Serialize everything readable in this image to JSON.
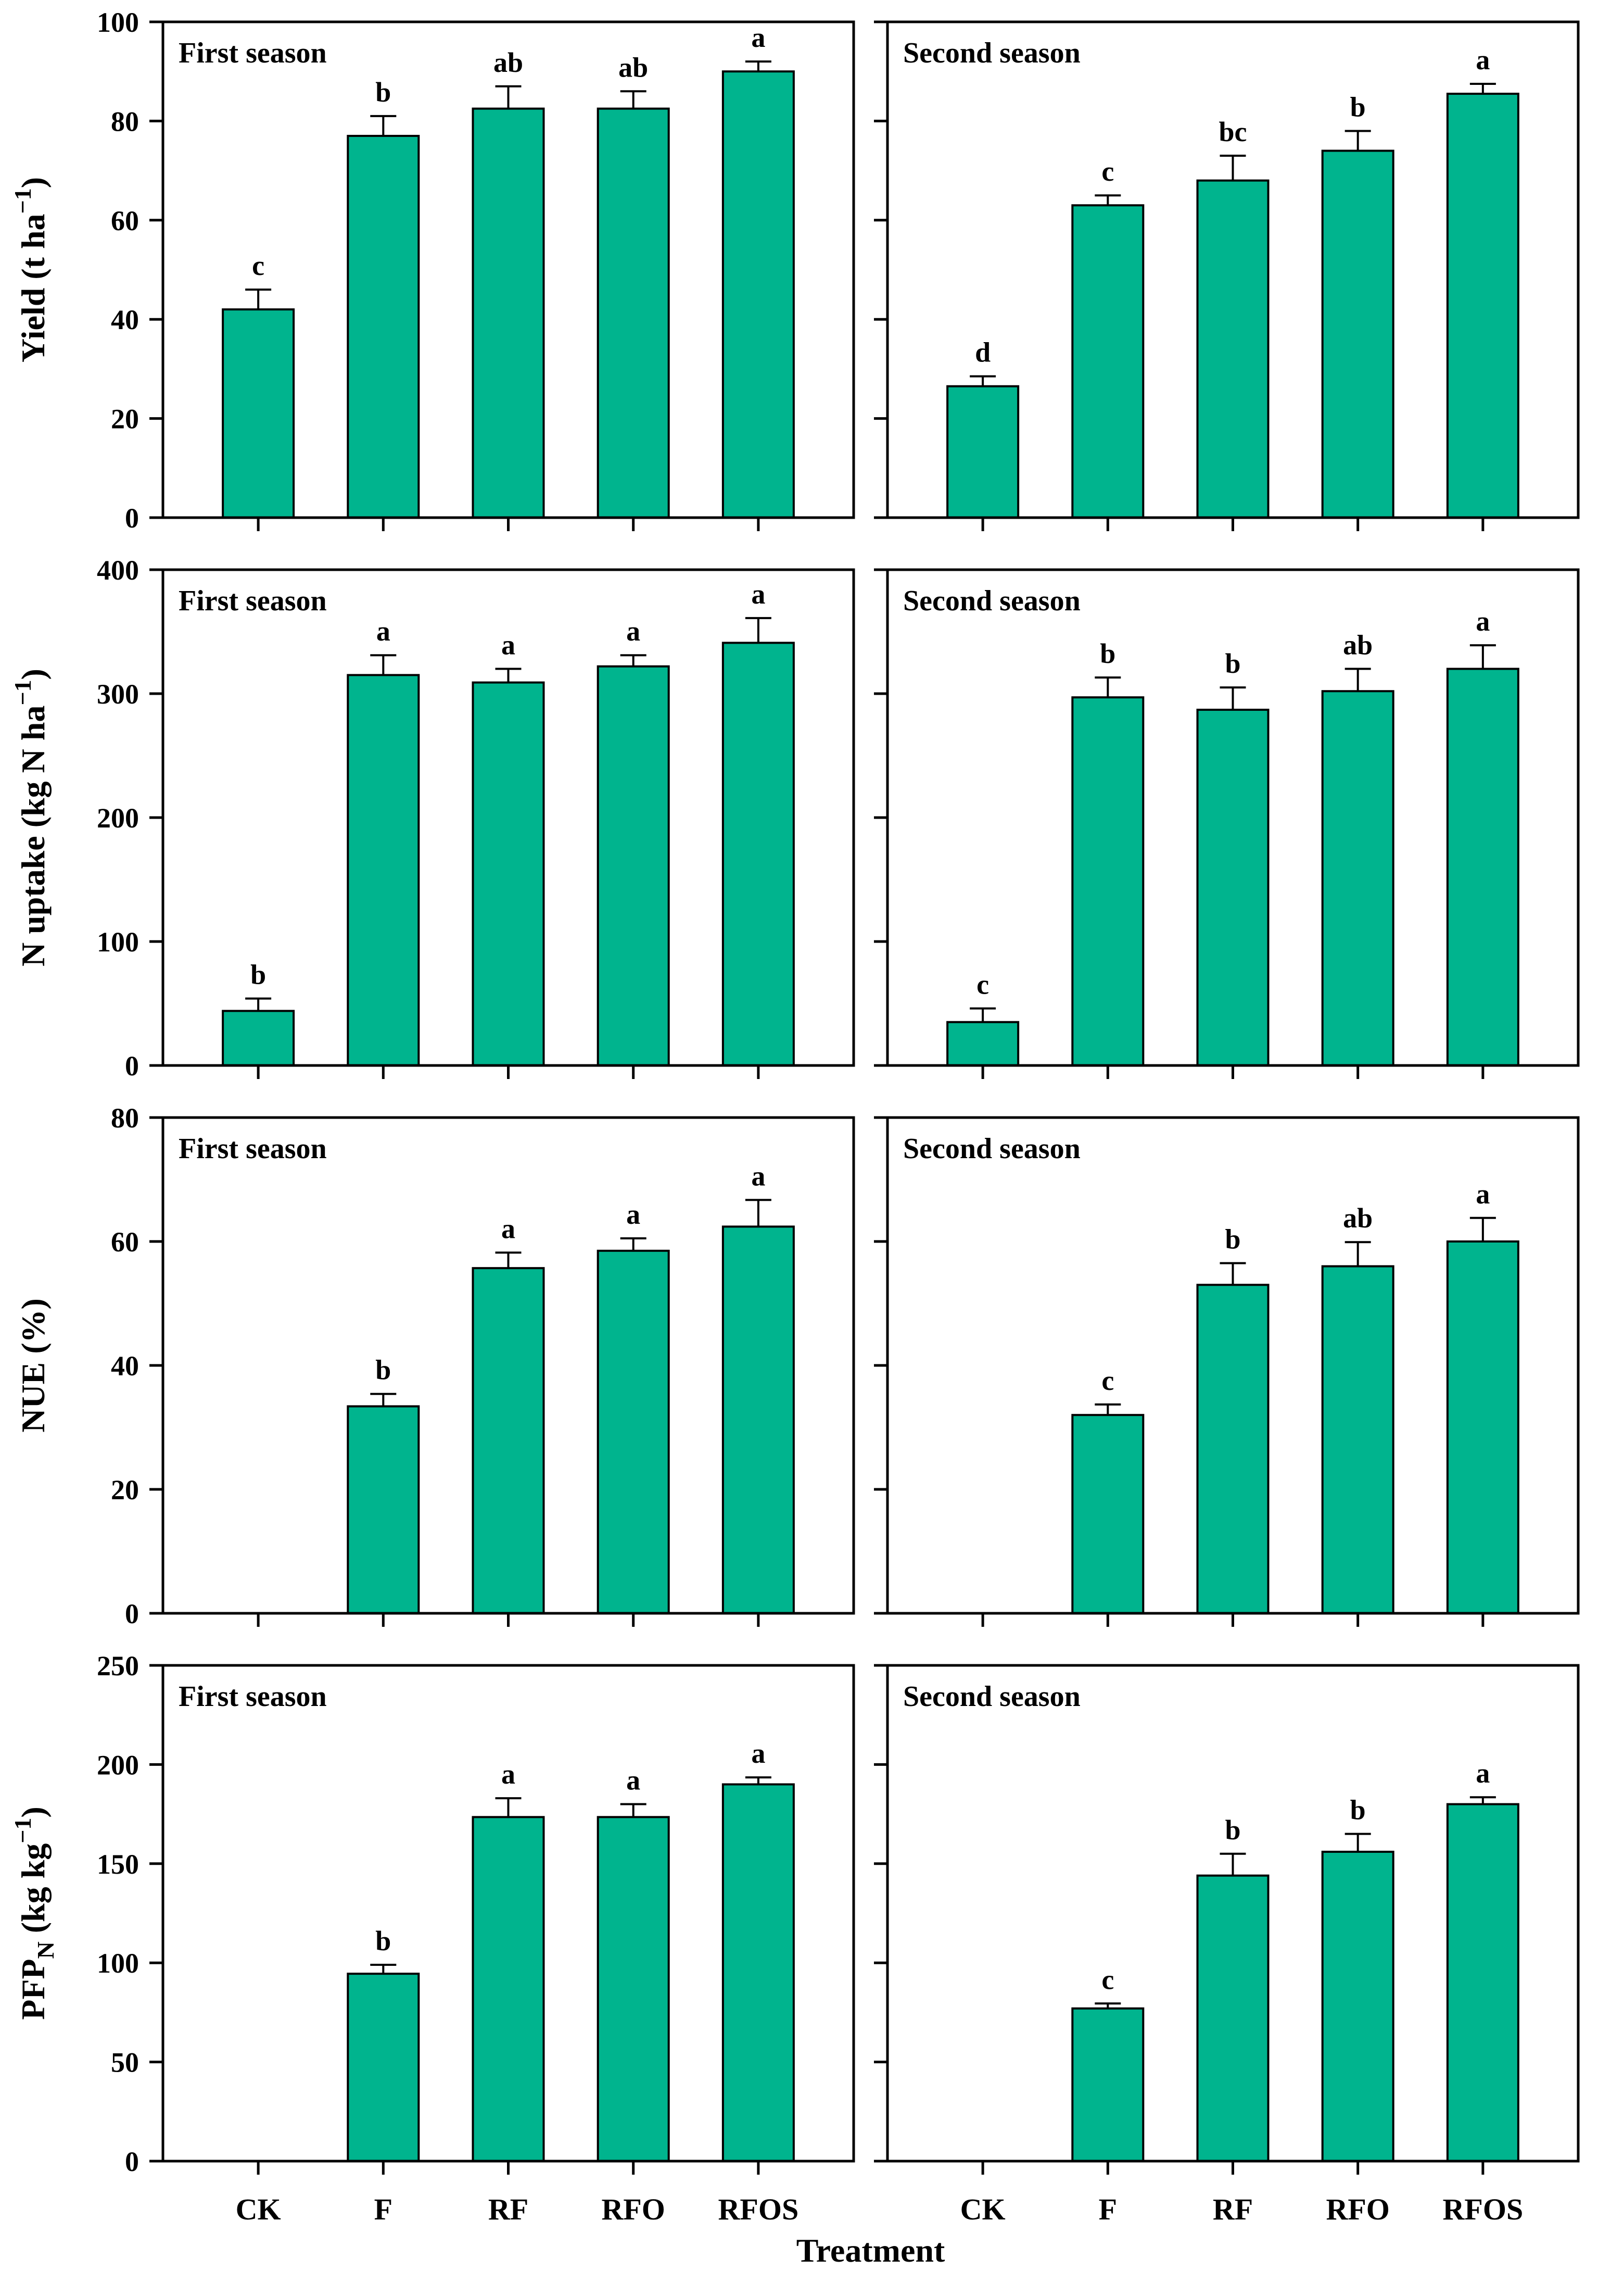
{
  "figure": {
    "background": "#ffffff",
    "bar_color": "#00b48e",
    "bar_border_color": "#000000",
    "axis_color": "#000000",
    "text_color": "#000000",
    "xlabel": "Treatment",
    "categories": [
      "CK",
      "F",
      "RF",
      "RFO",
      "RFOS"
    ],
    "season_labels": [
      "First season",
      "Second season"
    ],
    "legend": "none",
    "grid": "off"
  },
  "chart_data": [
    {
      "type": "bar",
      "id": "yield-first",
      "panel_label": "First season",
      "ylabel": "Yield (t ha−1)",
      "ylabel_segments": [
        {
          "t": "Yield (t ha"
        },
        {
          "t": "−1",
          "s": "sup"
        },
        {
          "t": ")"
        }
      ],
      "ylim": [
        0,
        100
      ],
      "ytick_step": 20,
      "categories": [
        "CK",
        "F",
        "RF",
        "RFO",
        "RFOS"
      ],
      "values": [
        42,
        77,
        82.5,
        82.5,
        90
      ],
      "errors": [
        4,
        4,
        4.5,
        3.5,
        2
      ],
      "letters": [
        "c",
        "b",
        "ab",
        "ab",
        "a"
      ],
      "show_ytick_labels": true,
      "show_xtick_labels": false,
      "show_ylabel": true
    },
    {
      "type": "bar",
      "id": "yield-second",
      "panel_label": "Second season",
      "ylabel": "Yield (t ha−1)",
      "ylabel_segments": [],
      "ylim": [
        0,
        100
      ],
      "ytick_step": 20,
      "categories": [
        "CK",
        "F",
        "RF",
        "RFO",
        "RFOS"
      ],
      "values": [
        26.5,
        63,
        68,
        74,
        85.5
      ],
      "errors": [
        2,
        2,
        5,
        4,
        2
      ],
      "letters": [
        "d",
        "c",
        "bc",
        "b",
        "a"
      ],
      "show_ytick_labels": false,
      "show_xtick_labels": false,
      "show_ylabel": false
    },
    {
      "type": "bar",
      "id": "nuptake-first",
      "panel_label": "First season",
      "ylabel": "N uptake (kg N ha−1)",
      "ylabel_segments": [
        {
          "t": "N uptake (kg N ha"
        },
        {
          "t": "−1",
          "s": "sup"
        },
        {
          "t": ")"
        }
      ],
      "ylim": [
        0,
        400
      ],
      "ytick_step": 100,
      "categories": [
        "CK",
        "F",
        "RF",
        "RFO",
        "RFOS"
      ],
      "values": [
        44,
        315,
        309,
        322,
        341
      ],
      "errors": [
        10,
        16,
        11,
        9,
        20
      ],
      "letters": [
        "b",
        "a",
        "a",
        "a",
        "a"
      ],
      "show_ytick_labels": true,
      "show_xtick_labels": false,
      "show_ylabel": true
    },
    {
      "type": "bar",
      "id": "nuptake-second",
      "panel_label": "Second season",
      "ylabel": "N uptake (kg N ha−1)",
      "ylabel_segments": [],
      "ylim": [
        0,
        400
      ],
      "ytick_step": 100,
      "categories": [
        "CK",
        "F",
        "RF",
        "RFO",
        "RFOS"
      ],
      "values": [
        35,
        297,
        287,
        302,
        320
      ],
      "errors": [
        11,
        16,
        18,
        18,
        19
      ],
      "letters": [
        "c",
        "b",
        "b",
        "ab",
        "a"
      ],
      "show_ytick_labels": false,
      "show_xtick_labels": false,
      "show_ylabel": false
    },
    {
      "type": "bar",
      "id": "nue-first",
      "panel_label": "First season",
      "ylabel": "NUE (%)",
      "ylabel_segments": [
        {
          "t": "NUE (%)"
        }
      ],
      "ylim": [
        0,
        80
      ],
      "ytick_step": 20,
      "categories": [
        "CK",
        "F",
        "RF",
        "RFO",
        "RFOS"
      ],
      "values": [
        0,
        33.4,
        55.7,
        58.5,
        62.4
      ],
      "errors": [
        0,
        2,
        2.5,
        2,
        4.3
      ],
      "letters": [
        "",
        "b",
        "a",
        "a",
        "a"
      ],
      "show_ytick_labels": true,
      "show_xtick_labels": false,
      "show_ylabel": true
    },
    {
      "type": "bar",
      "id": "nue-second",
      "panel_label": "Second season",
      "ylabel": "NUE (%)",
      "ylabel_segments": [],
      "ylim": [
        0,
        80
      ],
      "ytick_step": 20,
      "categories": [
        "CK",
        "F",
        "RF",
        "RFO",
        "RFOS"
      ],
      "values": [
        0,
        32,
        53,
        56,
        60
      ],
      "errors": [
        0,
        1.7,
        3.5,
        3.9,
        3.8
      ],
      "letters": [
        "",
        "c",
        "b",
        "ab",
        "a"
      ],
      "show_ytick_labels": false,
      "show_xtick_labels": false,
      "show_ylabel": false
    },
    {
      "type": "bar",
      "id": "pfp-first",
      "panel_label": "First season",
      "ylabel": "PFPN (kg kg−1)",
      "ylabel_segments": [
        {
          "t": "PFP"
        },
        {
          "t": "N",
          "s": "sub"
        },
        {
          "t": " (kg kg"
        },
        {
          "t": "−1",
          "s": "sup"
        },
        {
          "t": ")"
        }
      ],
      "ylim": [
        0,
        250
      ],
      "ytick_step": 50,
      "categories": [
        "CK",
        "F",
        "RF",
        "RFO",
        "RFOS"
      ],
      "values": [
        0,
        94.5,
        173.5,
        173.5,
        190
      ],
      "errors": [
        0,
        4.5,
        9.5,
        6.5,
        3.5
      ],
      "letters": [
        "",
        "b",
        "a",
        "a",
        "a"
      ],
      "show_ytick_labels": true,
      "show_xtick_labels": true,
      "show_ylabel": true
    },
    {
      "type": "bar",
      "id": "pfp-second",
      "panel_label": "Second season",
      "ylabel": "PFPN (kg kg−1)",
      "ylabel_segments": [],
      "ylim": [
        0,
        250
      ],
      "ytick_step": 50,
      "categories": [
        "CK",
        "F",
        "RF",
        "RFO",
        "RFOS"
      ],
      "values": [
        0,
        77,
        144,
        156,
        180
      ],
      "errors": [
        0,
        2.5,
        11,
        9,
        3.5
      ],
      "letters": [
        "",
        "c",
        "b",
        "b",
        "a"
      ],
      "show_ytick_labels": false,
      "show_xtick_labels": true,
      "show_ylabel": false
    }
  ]
}
